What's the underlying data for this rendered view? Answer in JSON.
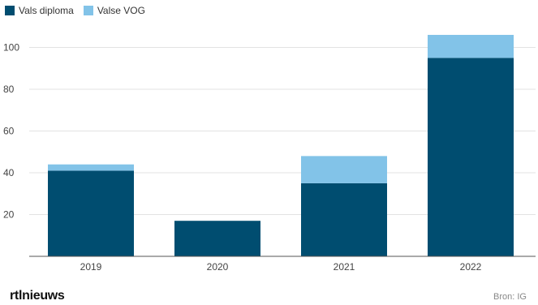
{
  "chart_data": {
    "type": "bar",
    "stacked": true,
    "categories": [
      "2019",
      "2020",
      "2021",
      "2022"
    ],
    "series": [
      {
        "name": "Vals diploma",
        "color": "#004d70",
        "values": [
          41,
          17,
          35,
          95
        ]
      },
      {
        "name": "Valse VOG",
        "color": "#82c3e8",
        "values": [
          3,
          0,
          13,
          11
        ]
      }
    ],
    "y_ticks": [
      20,
      40,
      60,
      80,
      100
    ],
    "ylim": [
      0,
      106
    ],
    "grid": "horizontal",
    "legend": "top-left"
  },
  "footer": {
    "brand": "rtlnieuws",
    "source": "Bron: IG"
  }
}
